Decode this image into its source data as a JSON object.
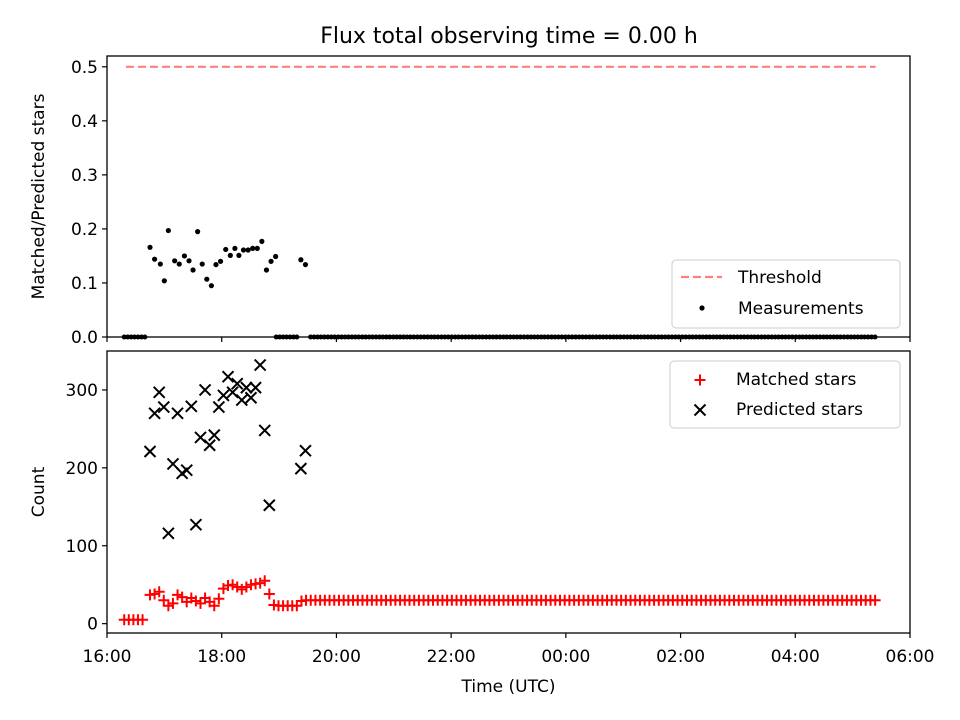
{
  "title": "Flux total observing time = 0.00 h",
  "chart_data": [
    {
      "type": "scatter",
      "ylabel": "Matched/Predicted stars",
      "xlim": [
        16.0,
        30.0
      ],
      "ylim": [
        0.0,
        0.52
      ],
      "yticks": [
        0.0,
        0.1,
        0.2,
        0.3,
        0.4,
        0.5
      ],
      "ytick_labels": [
        "0.0",
        "0.1",
        "0.2",
        "0.3",
        "0.4",
        "0.5"
      ],
      "legend": {
        "position": "lower-right",
        "entries": [
          "Threshold",
          "Measurements"
        ]
      },
      "threshold": {
        "name": "Threshold",
        "y": 0.5,
        "x": [
          16.33,
          29.4
        ],
        "color": "#ff7f7f",
        "style": "dashed"
      },
      "measurements": {
        "name": "Measurements",
        "color": "#000000",
        "zero_ranges": [
          [
            16.3,
            16.67,
            0.06
          ],
          [
            18.95,
            19.35,
            0.06
          ],
          [
            19.55,
            29.4,
            0.06
          ]
        ],
        "points": [
          [
            16.75,
            0.166
          ],
          [
            16.83,
            0.144
          ],
          [
            16.93,
            0.135
          ],
          [
            17.0,
            0.104
          ],
          [
            17.07,
            0.197
          ],
          [
            17.18,
            0.141
          ],
          [
            17.26,
            0.135
          ],
          [
            17.35,
            0.15
          ],
          [
            17.43,
            0.141
          ],
          [
            17.5,
            0.124
          ],
          [
            17.58,
            0.195
          ],
          [
            17.66,
            0.135
          ],
          [
            17.74,
            0.107
          ],
          [
            17.82,
            0.095
          ],
          [
            17.9,
            0.134
          ],
          [
            17.98,
            0.14
          ],
          [
            18.07,
            0.162
          ],
          [
            18.15,
            0.151
          ],
          [
            18.23,
            0.164
          ],
          [
            18.3,
            0.151
          ],
          [
            18.38,
            0.161
          ],
          [
            18.46,
            0.161
          ],
          [
            18.54,
            0.164
          ],
          [
            18.62,
            0.164
          ],
          [
            18.7,
            0.177
          ],
          [
            18.78,
            0.124
          ],
          [
            18.86,
            0.14
          ],
          [
            18.94,
            0.149
          ],
          [
            19.38,
            0.143
          ],
          [
            19.46,
            0.134
          ]
        ]
      }
    },
    {
      "type": "scatter",
      "ylabel": "Count",
      "xlabel": "Time (UTC)",
      "xlim": [
        16.0,
        30.0
      ],
      "ylim": [
        -12,
        350
      ],
      "yticks": [
        0,
        100,
        200,
        300
      ],
      "ytick_labels": [
        "0",
        "100",
        "200",
        "300"
      ],
      "xticks": [
        16,
        18,
        20,
        22,
        24,
        26,
        28,
        30
      ],
      "xtick_labels": [
        "16:00",
        "18:00",
        "20:00",
        "22:00",
        "00:00",
        "02:00",
        "04:00",
        "06:00"
      ],
      "legend": {
        "position": "upper-right",
        "entries": [
          "Matched stars",
          "Predicted stars"
        ]
      },
      "series": [
        {
          "name": "Matched stars",
          "color": "#ff0000",
          "marker": "plus",
          "points": [
            [
              16.3,
              5
            ],
            [
              16.38,
              5
            ],
            [
              16.46,
              5
            ],
            [
              16.54,
              5
            ],
            [
              16.62,
              5
            ],
            [
              16.75,
              37
            ],
            [
              16.83,
              38
            ],
            [
              16.91,
              41
            ],
            [
              16.99,
              30
            ],
            [
              17.07,
              23
            ],
            [
              17.15,
              26
            ],
            [
              17.23,
              37
            ],
            [
              17.31,
              34
            ],
            [
              17.39,
              28
            ],
            [
              17.47,
              33
            ],
            [
              17.55,
              29
            ],
            [
              17.63,
              26
            ],
            [
              17.71,
              33
            ],
            [
              17.79,
              28
            ],
            [
              17.87,
              23
            ],
            [
              17.95,
              32
            ],
            [
              18.03,
              45
            ],
            [
              18.11,
              49
            ],
            [
              18.19,
              50
            ],
            [
              18.27,
              47
            ],
            [
              18.35,
              44
            ],
            [
              18.43,
              47
            ],
            [
              18.51,
              50
            ],
            [
              18.59,
              51
            ],
            [
              18.67,
              52
            ],
            [
              18.75,
              55
            ],
            [
              18.83,
              38
            ],
            [
              18.91,
              24
            ],
            [
              18.99,
              23
            ],
            [
              19.07,
              23
            ],
            [
              19.15,
              23
            ],
            [
              19.23,
              23
            ],
            [
              19.31,
              23
            ],
            [
              19.39,
              29
            ]
          ],
          "flat_run": {
            "y": 30,
            "x_from": 19.47,
            "x_to": 29.4,
            "step": 0.082
          }
        },
        {
          "name": "Predicted stars",
          "color": "#000000",
          "marker": "x",
          "points": [
            [
              16.75,
              221
            ],
            [
              16.83,
              270
            ],
            [
              16.91,
              297
            ],
            [
              16.99,
              278
            ],
            [
              17.07,
              116
            ],
            [
              17.15,
              205
            ],
            [
              17.23,
              270
            ],
            [
              17.31,
              193
            ],
            [
              17.39,
              197
            ],
            [
              17.47,
              279
            ],
            [
              17.55,
              127
            ],
            [
              17.63,
              239
            ],
            [
              17.71,
              300
            ],
            [
              17.79,
              229
            ],
            [
              17.87,
              242
            ],
            [
              17.95,
              278
            ],
            [
              18.03,
              293
            ],
            [
              18.11,
              317
            ],
            [
              18.19,
              297
            ],
            [
              18.27,
              308
            ],
            [
              18.35,
              287
            ],
            [
              18.43,
              303
            ],
            [
              18.51,
              290
            ],
            [
              18.59,
              303
            ],
            [
              18.67,
              332
            ],
            [
              18.75,
              248
            ],
            [
              18.83,
              152
            ],
            [
              19.38,
              199
            ],
            [
              19.46,
              222
            ]
          ]
        }
      ]
    }
  ]
}
